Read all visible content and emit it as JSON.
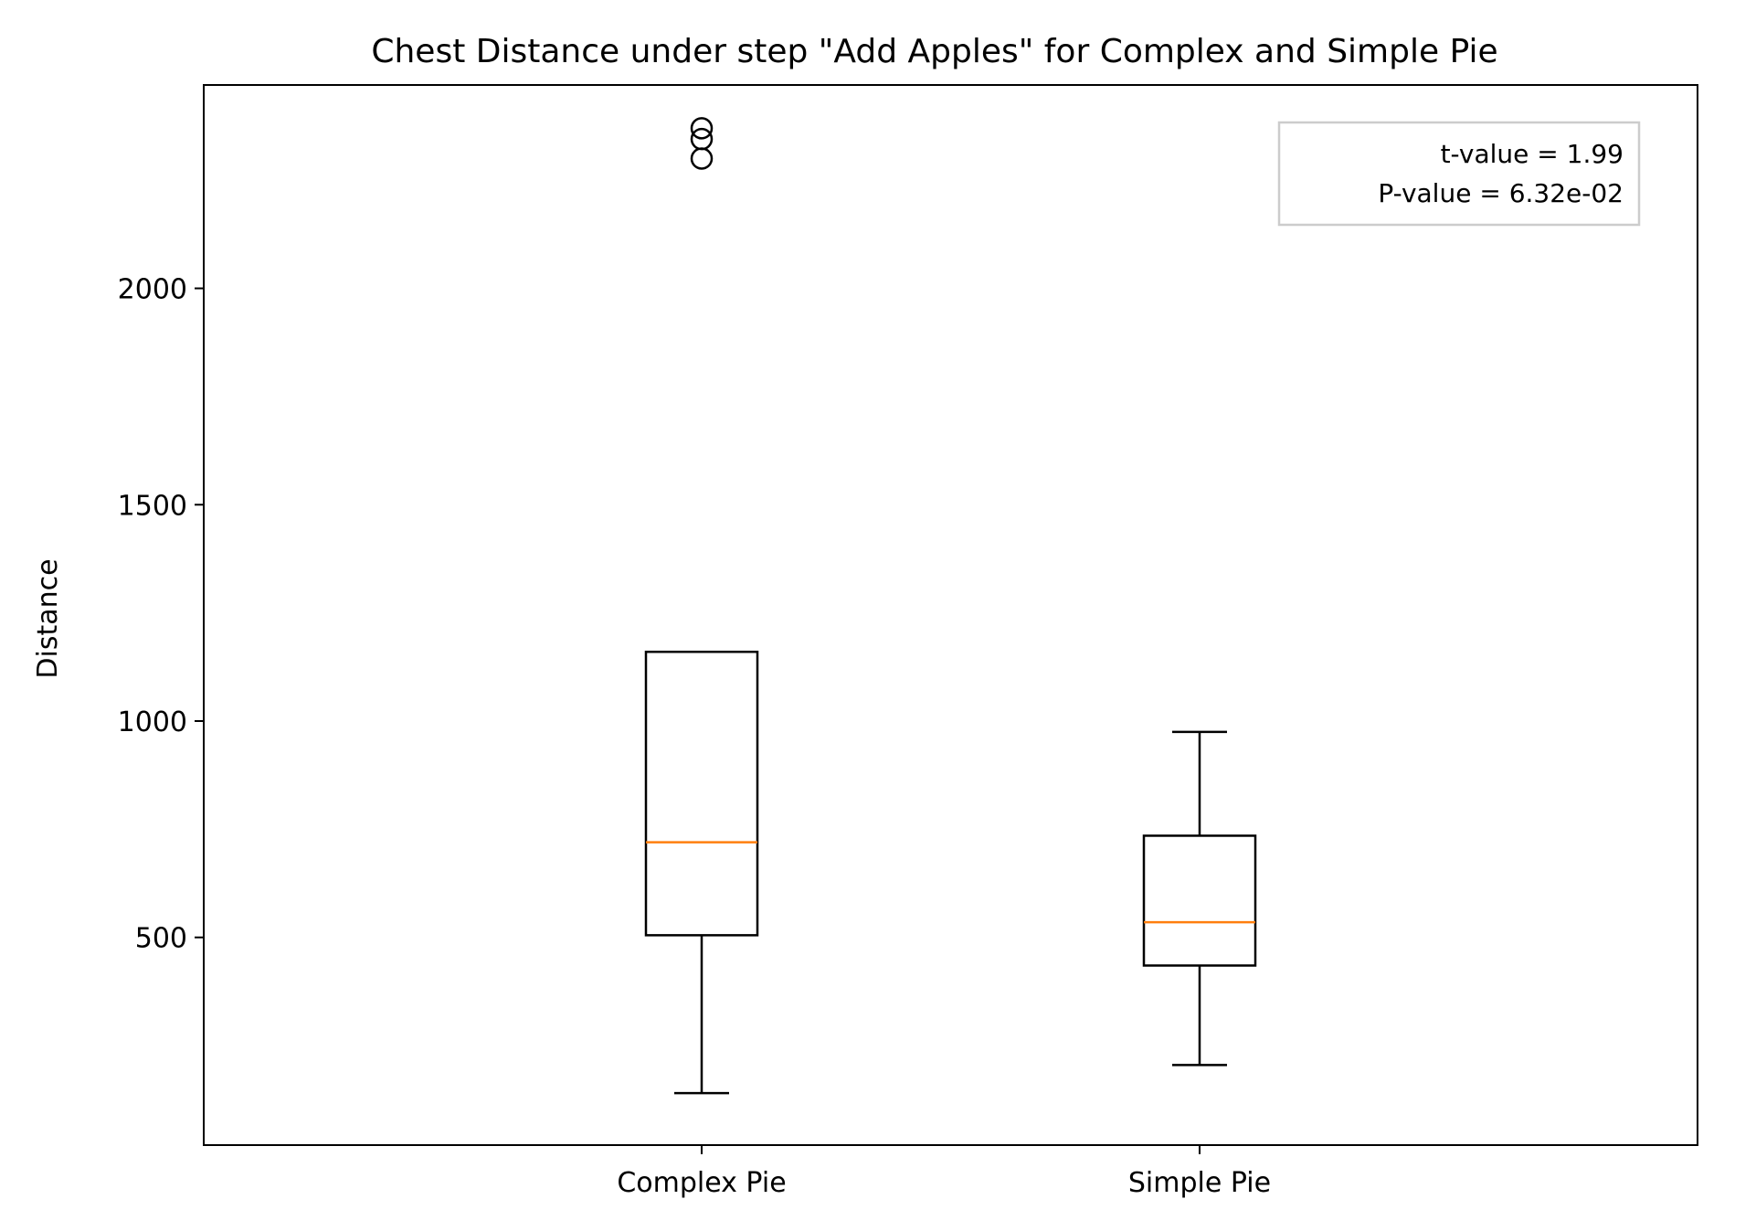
{
  "chart_data": {
    "type": "boxplot",
    "title": "Chest Distance under step \"Add Apples\" for Complex and Simple Pie",
    "xlabel": "",
    "ylabel": "Distance",
    "ylim": [
      20,
      2470
    ],
    "yticks": [
      500,
      1000,
      1500,
      2000
    ],
    "grid": false,
    "categories": [
      "Complex Pie",
      "Simple Pie"
    ],
    "boxes": [
      {
        "category": "Complex Pie",
        "whisker_low": 140,
        "q1": 505,
        "median": 720,
        "q3": 1160,
        "whisker_high": 1160,
        "fliers": [
          2300,
          2345,
          2370
        ]
      },
      {
        "category": "Simple Pie",
        "whisker_low": 205,
        "q1": 435,
        "median": 535,
        "q3": 735,
        "whisker_high": 975,
        "fliers": []
      }
    ],
    "annotation": {
      "lines": [
        "t-value = 1.99",
        "P-value = 6.32e-02"
      ],
      "placement": "top-right"
    },
    "colors": {
      "box": "#000000",
      "median": "#ff7f0e",
      "annotation_border": "#cccccc"
    }
  }
}
